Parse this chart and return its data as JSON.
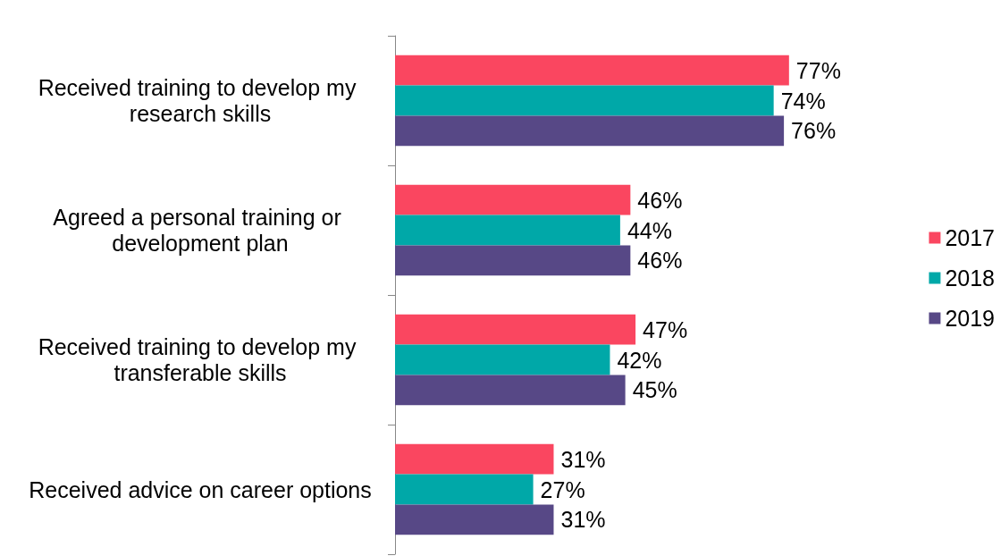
{
  "chart_data": {
    "type": "bar",
    "orientation": "horizontal",
    "categories": [
      "Received training to develop my research skills",
      "Agreed a personal training or development plan",
      "Received training to develop my transferable skills",
      "Received advice on career options"
    ],
    "series": [
      {
        "name": "2017",
        "color": "#fa4660",
        "values": [
          77,
          46,
          47,
          31
        ],
        "value_labels": [
          "77%",
          "46%",
          "47%",
          "31%"
        ]
      },
      {
        "name": "2018",
        "color": "#00a8a8",
        "values": [
          74,
          44,
          42,
          27
        ],
        "value_labels": [
          "74%",
          "44%",
          "42%",
          "27%"
        ]
      },
      {
        "name": "2019",
        "color": "#574886",
        "values": [
          76,
          46,
          45,
          31
        ],
        "value_labels": [
          "76%",
          "46%",
          "45%",
          "31%"
        ]
      }
    ],
    "legend": "right"
  }
}
